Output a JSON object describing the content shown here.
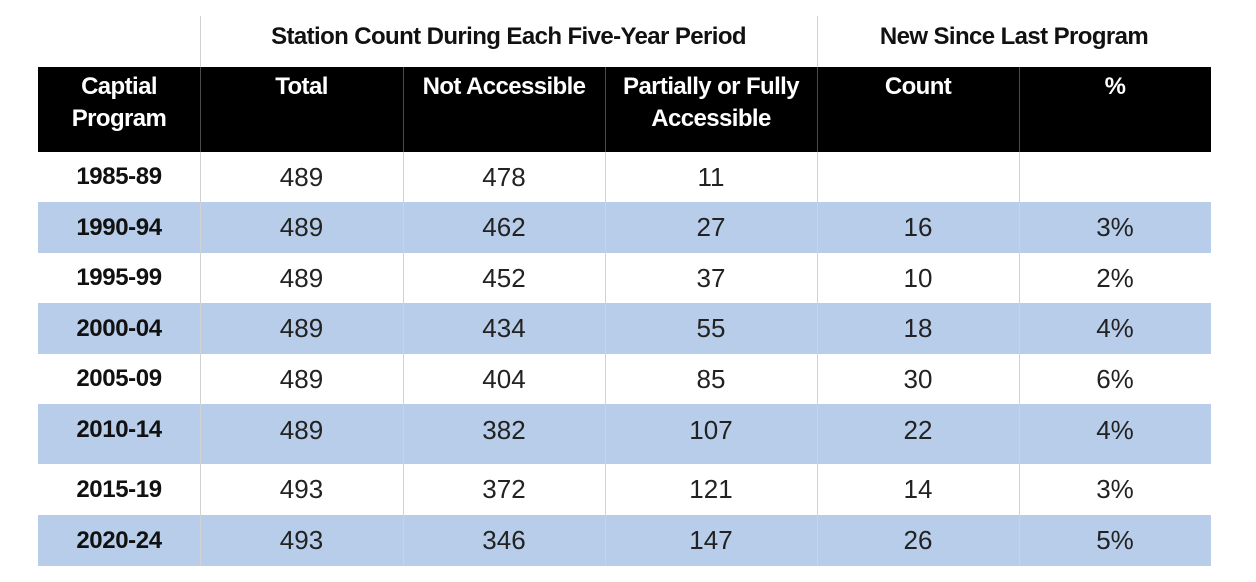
{
  "chart_data": {
    "type": "table",
    "group_headers": [
      {
        "label": "Station Count During Each Five-Year Period",
        "span": [
          "Total",
          "Not Accessible",
          "Partially or Fully Accessible"
        ]
      },
      {
        "label": "New Since Last Program",
        "span": [
          "Count",
          "%"
        ]
      }
    ],
    "columns": [
      "Captial Program",
      "Total",
      "Not Accessible",
      "Partially or Fully Accessible",
      "Count",
      "%"
    ],
    "rows": [
      {
        "program": "1985-89",
        "total": "489",
        "not_accessible": "478",
        "accessible": "11",
        "new_count": "",
        "new_pct": ""
      },
      {
        "program": "1990-94",
        "total": "489",
        "not_accessible": "462",
        "accessible": "27",
        "new_count": "16",
        "new_pct": "3%"
      },
      {
        "program": "1995-99",
        "total": "489",
        "not_accessible": "452",
        "accessible": "37",
        "new_count": "10",
        "new_pct": "2%"
      },
      {
        "program": "2000-04",
        "total": "489",
        "not_accessible": "434",
        "accessible": "55",
        "new_count": "18",
        "new_pct": "4%"
      },
      {
        "program": "2005-09",
        "total": "489",
        "not_accessible": "404",
        "accessible": "85",
        "new_count": "30",
        "new_pct": "6%"
      },
      {
        "program": "2010-14",
        "total": "489",
        "not_accessible": "382",
        "accessible": "107",
        "new_count": "22",
        "new_pct": "4%"
      },
      {
        "program": "2015-19",
        "total": "493",
        "not_accessible": "372",
        "accessible": "121",
        "new_count": "14",
        "new_pct": "3%"
      },
      {
        "program": "2020-24",
        "total": "493",
        "not_accessible": "346",
        "accessible": "147",
        "new_count": "26",
        "new_pct": "5%"
      }
    ],
    "colors": {
      "header_bg": "#000000",
      "header_text": "#ffffff",
      "alt_row_bg": "#b8cde9",
      "row_bg": "#ffffff"
    }
  }
}
